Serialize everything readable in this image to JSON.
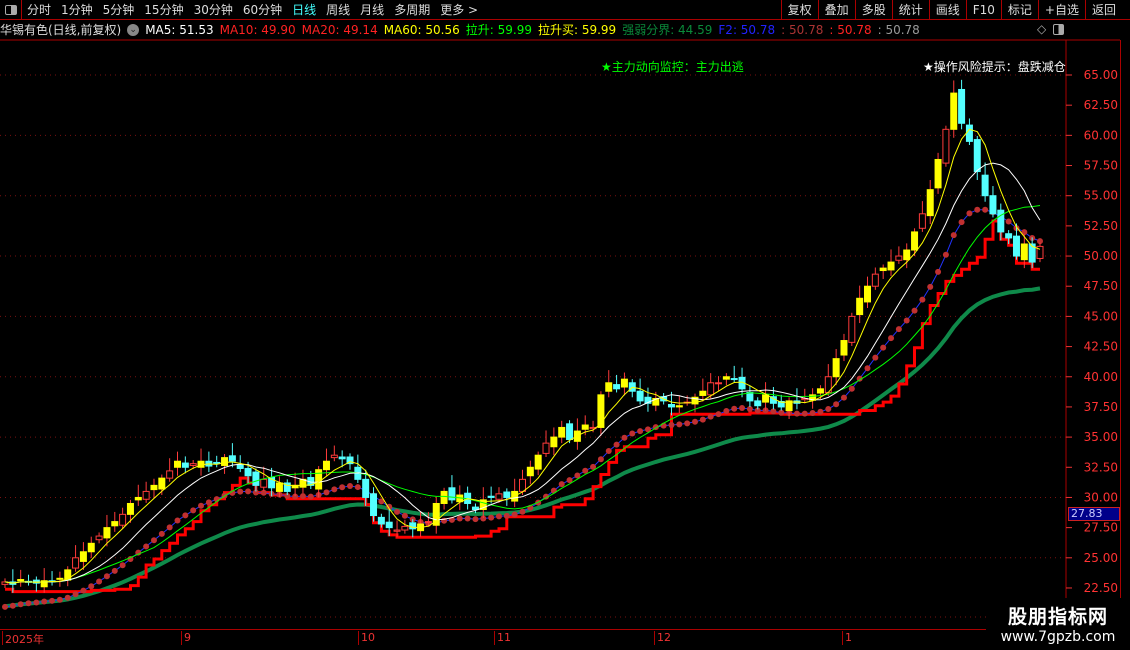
{
  "toolbar": {
    "periods": [
      "分时",
      "1分钟",
      "5分钟",
      "15分钟",
      "30分钟",
      "60分钟",
      "日线",
      "周线",
      "月线",
      "多周期",
      "更多 >"
    ],
    "active_period": "日线",
    "right_buttons": [
      "复权",
      "叠加",
      "多股",
      "统计",
      "画线",
      "F10",
      "标记",
      "+自选",
      "返回"
    ]
  },
  "info": {
    "title": "华锡有色(日线,前复权)",
    "ma5": "MA5: 51.53",
    "ma10": "MA10: 49.90",
    "ma20": "MA20: 49.14",
    "ma60": "MA60: 50.56",
    "lasheng": "拉升: 59.99",
    "lashengmai": "拉升买: 59.99",
    "qiangruo": "强弱分界: 44.59",
    "f2": "F2: 50.78",
    "v1": ": 50.78",
    "v2": ": 50.78",
    "v3": ": 50.78"
  },
  "annotations": {
    "main_force": "★主力动向监控：主力出逃",
    "risk": "★操作风险提示：盘跌减仓"
  },
  "price_tag": "27.83",
  "date_axis": [
    "2025年",
    "9",
    "10",
    "11",
    "12",
    "1"
  ],
  "watermark": {
    "line1": "股朋指标网",
    "line2": "www.7gpzb.com"
  },
  "colors": {
    "up": "#ff3b3b",
    "down": "#54ffff",
    "ma5": "#ffff00",
    "ma10": "#ffffff",
    "ma20": "#00ff00",
    "ma60": "#0f8a4a",
    "support": "#ff0000",
    "sar": "#c03030"
  },
  "chart_data": {
    "type": "candlestick",
    "ylim": [
      21.5,
      69
    ],
    "y_ticks": [
      "65.00",
      "62.50",
      "60.00",
      "57.50",
      "55.00",
      "52.50",
      "50.00",
      "47.50",
      "45.00",
      "42.50",
      "40.00",
      "37.50",
      "35.00",
      "32.50",
      "30.00",
      "27.50",
      "25.00",
      "22.50"
    ],
    "close": [
      23.0,
      22.8,
      23.2,
      23.0,
      22.9,
      23.1,
      23.0,
      23.3,
      24.0,
      25.0,
      25.5,
      26.2,
      26.8,
      27.5,
      28.0,
      28.6,
      29.5,
      30.0,
      30.5,
      31.0,
      31.6,
      32.2,
      33.0,
      32.5,
      32.8,
      33.0,
      32.6,
      32.8,
      33.3,
      33.0,
      32.4,
      31.8,
      31.0,
      31.5,
      30.8,
      31.2,
      30.5,
      31.0,
      31.5,
      31.0,
      32.3,
      33.0,
      33.5,
      33.2,
      32.8,
      31.5,
      30.0,
      28.5,
      27.8,
      27.5,
      27.3,
      27.6,
      27.4,
      27.8,
      28.0,
      29.5,
      30.5,
      29.8,
      30.2,
      29.5,
      29.0,
      29.8,
      30.0,
      30.3,
      30.0,
      30.5,
      31.5,
      32.5,
      33.5,
      34.5,
      35.0,
      35.8,
      34.8,
      35.5,
      36.0,
      35.8,
      38.5,
      39.5,
      39.0,
      39.8,
      38.8,
      38.0,
      37.8,
      38.2,
      38.0,
      37.5,
      37.6,
      37.9,
      38.3,
      38.8,
      39.5,
      39.5,
      40.0,
      39.8,
      39.0,
      38.0,
      37.6,
      38.5,
      37.8,
      37.5,
      38.0,
      37.8,
      38.2,
      38.5,
      39.0,
      40.0,
      41.5,
      43.0,
      45.0,
      46.5,
      47.5,
      48.5,
      49.0,
      49.5,
      50.0,
      50.5,
      52.0,
      53.5,
      55.5,
      58.0,
      60.5,
      63.5,
      61.0,
      59.5,
      57.0,
      55.0,
      53.5,
      52.0,
      51.5,
      50.0,
      51.0,
      49.5,
      50.8
    ]
  }
}
